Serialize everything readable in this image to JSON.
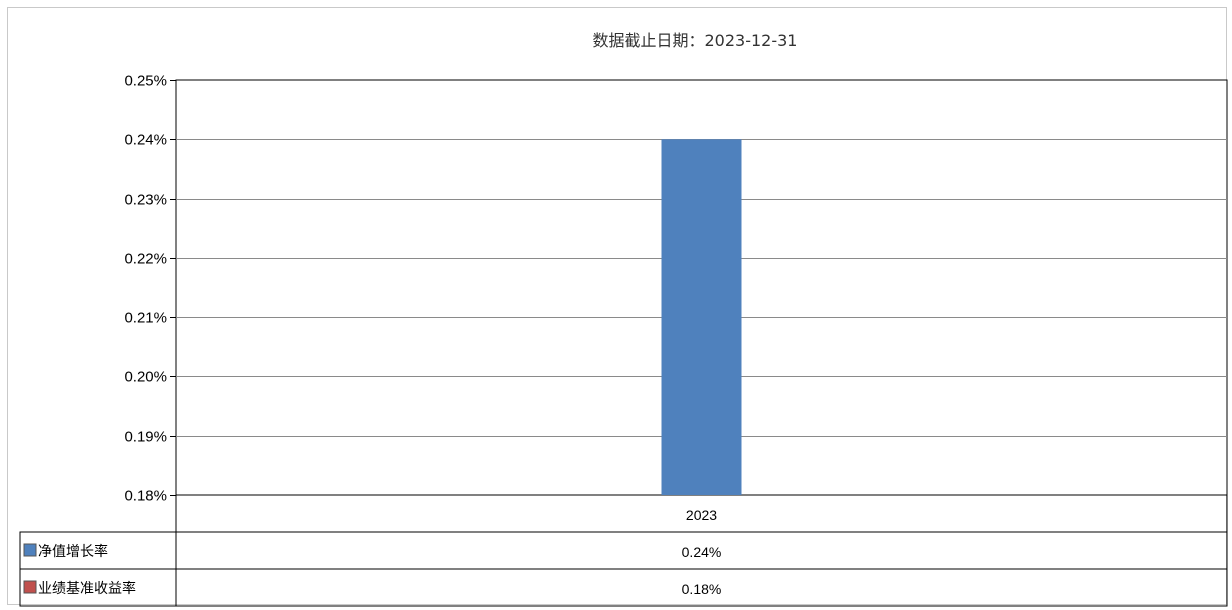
{
  "chart_data": {
    "type": "bar",
    "title": "数据截止日期：2023-12-31",
    "categories": [
      "2023"
    ],
    "series": [
      {
        "name": "净值增长率",
        "values": [
          0.24
        ],
        "color": "#4f81bd",
        "display": [
          "0.24%"
        ]
      },
      {
        "name": "业绩基准收益率",
        "values": [
          0.18
        ],
        "color": "#c0504d",
        "display": [
          "0.18%"
        ]
      }
    ],
    "y_ticks": [
      "0.18%",
      "0.19%",
      "0.20%",
      "0.21%",
      "0.22%",
      "0.23%",
      "0.24%",
      "0.25%"
    ],
    "ylim": [
      0.18,
      0.25
    ],
    "ystep": 0.01,
    "grid": true,
    "legend": "data-table-left",
    "data_table": true
  }
}
